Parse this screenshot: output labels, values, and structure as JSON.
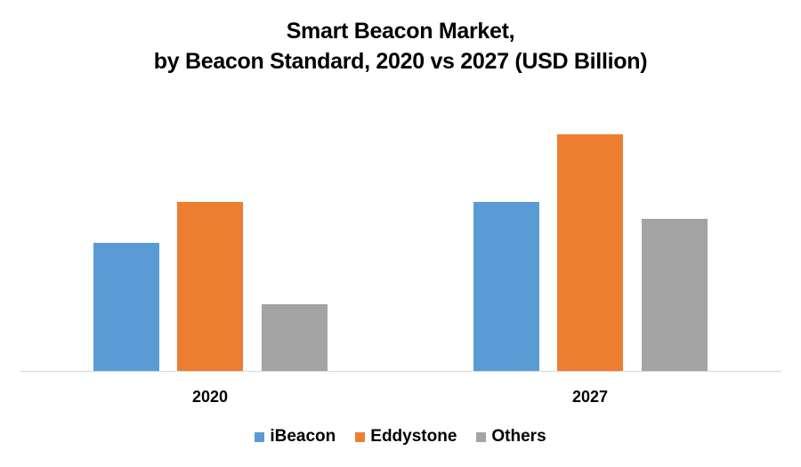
{
  "chart_data": {
    "type": "bar",
    "title": "Smart Beacon Market,\nby Beacon Standard, 2020 vs 2027 (USD Billion)",
    "title_lines": [
      "Smart Beacon Market,",
      "by Beacon Standard, 2020 vs 2027 (USD Billion)"
    ],
    "xlabel": "",
    "ylabel": "",
    "categories": [
      "2020",
      "2027"
    ],
    "series": [
      {
        "name": "iBeacon",
        "color": "#5b9bd5",
        "values": [
          1.45,
          1.91
        ]
      },
      {
        "name": "Eddystone",
        "color": "#ed7d31",
        "values": [
          1.91,
          2.67
        ]
      },
      {
        "name": "Others",
        "color": "#a5a5a5",
        "values": [
          0.76,
          1.72
        ]
      }
    ],
    "ylim": [
      0,
      3.18
    ],
    "y_axis_visible": false,
    "grid": false,
    "legend_position": "bottom",
    "value_note": "No value axis or data labels shown; values are relative estimates from bar heights"
  }
}
